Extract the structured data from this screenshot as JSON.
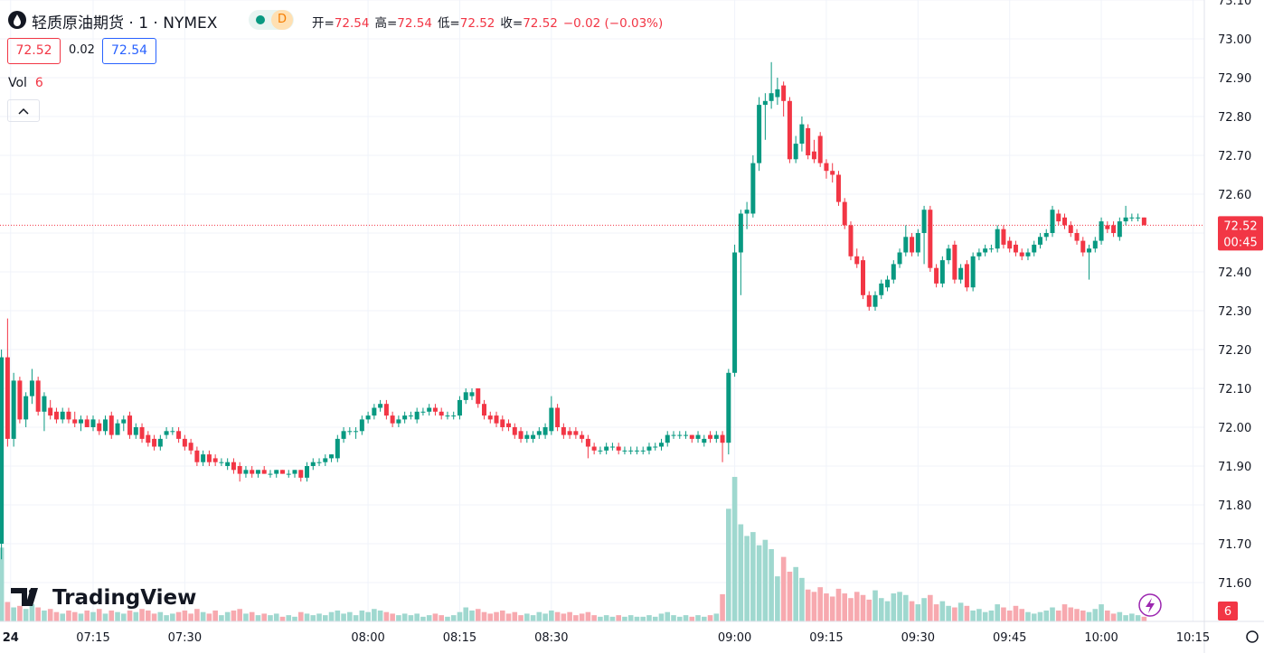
{
  "chart_data": {
    "type": "candlestick",
    "title": "轻质原油期货 · 1 · NYMEX",
    "interval_badge": "D",
    "ohlc_legend": [
      {
        "label": "开=",
        "value": "72.54"
      },
      {
        "label": "高=",
        "value": "72.54"
      },
      {
        "label": "低=",
        "value": "72.52"
      },
      {
        "label": "收=",
        "value": "72.52"
      }
    ],
    "change": "−0.02 (−0.03%)",
    "bid": "72.52",
    "spread": "0.02",
    "ask": "72.54",
    "volume_label": "Vol",
    "watermark": "TradingView",
    "up_color": "#089981",
    "down_color": "#f23645",
    "volume_up_color": "#9fd8cf",
    "volume_down_color": "#f7a9af",
    "grid": true,
    "xlim": [
      -0.24,
      196.86
    ],
    "xticks": [
      {
        "value": 1.5,
        "label": "24"
      },
      {
        "value": 15,
        "label": "07:15"
      },
      {
        "value": 30,
        "label": "07:30"
      },
      {
        "value": 60,
        "label": "08:00"
      },
      {
        "value": 75,
        "label": "08:15"
      },
      {
        "value": 90,
        "label": "08:30"
      },
      {
        "value": 120,
        "label": "09:00"
      },
      {
        "value": 135,
        "label": "09:15"
      },
      {
        "value": 150,
        "label": "09:30"
      },
      {
        "value": 165,
        "label": "09:45"
      },
      {
        "value": 180,
        "label": "10:00"
      },
      {
        "value": 195,
        "label": "10:15"
      }
    ],
    "ylim": [
      71.5,
      73.1
    ],
    "yticks": [
      {
        "value": 71.6,
        "label": "71.60"
      },
      {
        "value": 71.7,
        "label": "71.70"
      },
      {
        "value": 71.8,
        "label": "71.80"
      },
      {
        "value": 71.9,
        "label": "71.90"
      },
      {
        "value": 72.0,
        "label": "72.00"
      },
      {
        "value": 72.1,
        "label": "72.10"
      },
      {
        "value": 72.2,
        "label": "72.20"
      },
      {
        "value": 72.3,
        "label": "72.30"
      },
      {
        "value": 72.4,
        "label": "72.40"
      },
      {
        "value": 72.5,
        "label": "72.50"
      },
      {
        "value": 72.6,
        "label": "72.60"
      },
      {
        "value": 72.7,
        "label": "72.70"
      },
      {
        "value": 72.8,
        "label": "72.80"
      },
      {
        "value": 72.9,
        "label": "72.90"
      },
      {
        "value": 73.0,
        "label": "73.00"
      },
      {
        "value": 73.1,
        "label": "73.10"
      }
    ],
    "last_price": {
      "value": 72.52,
      "label": "72.52"
    },
    "countdown": "00:45",
    "volume_ylim": [
      0,
      800
    ],
    "candles": [
      [
        71.7,
        72.2,
        71.66,
        72.18
      ],
      [
        72.18,
        72.28,
        71.95,
        71.97
      ],
      [
        71.97,
        72.14,
        71.95,
        72.12
      ],
      [
        72.12,
        72.13,
        72.01,
        72.02
      ],
      [
        72.02,
        72.09,
        72.0,
        72.08
      ],
      [
        72.08,
        72.15,
        72.06,
        72.12
      ],
      [
        72.12,
        72.13,
        72.03,
        72.04
      ],
      [
        72.04,
        72.09,
        71.99,
        72.08
      ],
      [
        72.05,
        72.07,
        72.02,
        72.03
      ],
      [
        72.04,
        72.05,
        72.01,
        72.02
      ],
      [
        72.02,
        72.05,
        72.01,
        72.04
      ],
      [
        72.04,
        72.05,
        72.01,
        72.02
      ],
      [
        72.02,
        72.04,
        72.0,
        72.01
      ],
      [
        72.01,
        72.03,
        71.99,
        72.02
      ],
      [
        72.02,
        72.03,
        72.0,
        72.0
      ],
      [
        72.0,
        72.03,
        71.99,
        72.02
      ],
      [
        72.01,
        72.02,
        71.98,
        71.99
      ],
      [
        71.99,
        72.03,
        71.98,
        72.02
      ],
      [
        72.03,
        72.04,
        71.97,
        71.98
      ],
      [
        71.98,
        72.02,
        71.98,
        72.01
      ],
      [
        72.01,
        72.03,
        71.99,
        72.02
      ],
      [
        72.03,
        72.04,
        71.97,
        71.98
      ],
      [
        71.98,
        72.01,
        71.97,
        72.0
      ],
      [
        72.0,
        72.01,
        71.96,
        71.97
      ],
      [
        71.98,
        71.99,
        71.95,
        71.96
      ],
      [
        71.97,
        71.98,
        71.94,
        71.95
      ],
      [
        71.95,
        71.98,
        71.94,
        71.97
      ],
      [
        71.98,
        72.0,
        71.97,
        71.99
      ],
      [
        71.99,
        72.0,
        71.98,
        71.99
      ],
      [
        71.99,
        72.0,
        71.96,
        71.97
      ],
      [
        71.97,
        71.98,
        71.94,
        71.95
      ],
      [
        71.96,
        71.97,
        71.93,
        71.94
      ],
      [
        71.94,
        71.95,
        71.9,
        71.91
      ],
      [
        71.91,
        71.94,
        71.9,
        71.93
      ],
      [
        71.93,
        71.94,
        71.9,
        71.91
      ],
      [
        71.92,
        71.93,
        71.9,
        71.91
      ],
      [
        71.91,
        71.92,
        71.9,
        71.91
      ],
      [
        71.9,
        71.92,
        71.89,
        71.91
      ],
      [
        71.91,
        71.92,
        71.88,
        71.89
      ],
      [
        71.9,
        71.91,
        71.86,
        71.88
      ],
      [
        71.88,
        71.9,
        71.87,
        71.89
      ],
      [
        71.89,
        71.9,
        71.87,
        71.88
      ],
      [
        71.88,
        71.89,
        71.87,
        71.89
      ],
      [
        71.89,
        71.9,
        71.88,
        71.88
      ],
      [
        71.88,
        71.89,
        71.87,
        71.88
      ],
      [
        71.88,
        71.89,
        71.87,
        71.89
      ],
      [
        71.89,
        71.89,
        71.88,
        71.88
      ],
      [
        71.88,
        71.89,
        71.87,
        71.88
      ],
      [
        71.88,
        71.89,
        71.87,
        71.89
      ],
      [
        71.89,
        71.89,
        71.86,
        71.87
      ],
      [
        71.87,
        71.91,
        71.86,
        71.9
      ],
      [
        71.9,
        71.92,
        71.89,
        71.91
      ],
      [
        71.91,
        71.92,
        71.9,
        71.91
      ],
      [
        71.91,
        71.93,
        71.9,
        71.92
      ],
      [
        71.92,
        71.93,
        71.91,
        71.93
      ],
      [
        71.92,
        71.98,
        71.91,
        71.97
      ],
      [
        71.97,
        72.0,
        71.96,
        71.99
      ],
      [
        71.99,
        72.0,
        71.98,
        71.99
      ],
      [
        71.99,
        72.0,
        71.97,
        71.99
      ],
      [
        71.99,
        72.03,
        71.98,
        72.02
      ],
      [
        72.02,
        72.04,
        72.01,
        72.03
      ],
      [
        72.03,
        72.06,
        72.02,
        72.05
      ],
      [
        72.05,
        72.07,
        72.04,
        72.06
      ],
      [
        72.06,
        72.07,
        72.02,
        72.03
      ],
      [
        72.03,
        72.04,
        72.0,
        72.01
      ],
      [
        72.01,
        72.03,
        72.0,
        72.02
      ],
      [
        72.02,
        72.04,
        72.01,
        72.03
      ],
      [
        72.03,
        72.04,
        72.02,
        72.03
      ],
      [
        72.02,
        72.05,
        72.01,
        72.04
      ],
      [
        72.04,
        72.05,
        72.03,
        72.04
      ],
      [
        72.04,
        72.06,
        72.03,
        72.05
      ],
      [
        72.05,
        72.06,
        72.03,
        72.04
      ],
      [
        72.04,
        72.05,
        72.02,
        72.03
      ],
      [
        72.03,
        72.04,
        72.02,
        72.03
      ],
      [
        72.03,
        72.04,
        72.02,
        72.03
      ],
      [
        72.03,
        72.08,
        72.02,
        72.07
      ],
      [
        72.07,
        72.1,
        72.06,
        72.09
      ],
      [
        72.08,
        72.1,
        72.07,
        72.09
      ],
      [
        72.1,
        72.1,
        72.05,
        72.06
      ],
      [
        72.06,
        72.07,
        72.02,
        72.03
      ],
      [
        72.03,
        72.04,
        72.01,
        72.02
      ],
      [
        72.03,
        72.04,
        72.0,
        72.01
      ],
      [
        72.02,
        72.03,
        71.99,
        72.0
      ],
      [
        72.01,
        72.02,
        71.99,
        72.0
      ],
      [
        72.0,
        72.01,
        71.97,
        71.98
      ],
      [
        71.99,
        72.0,
        71.96,
        71.97
      ],
      [
        71.97,
        71.99,
        71.96,
        71.98
      ],
      [
        71.97,
        71.99,
        71.96,
        71.98
      ],
      [
        71.98,
        72.0,
        71.97,
        71.99
      ],
      [
        71.98,
        72.01,
        71.97,
        72.0
      ],
      [
        71.99,
        72.08,
        71.98,
        72.05
      ],
      [
        72.05,
        72.06,
        71.99,
        72.0
      ],
      [
        72.0,
        72.01,
        71.97,
        71.98
      ],
      [
        71.99,
        72.0,
        71.97,
        71.98
      ],
      [
        71.99,
        72.0,
        71.97,
        71.98
      ],
      [
        71.98,
        71.99,
        71.96,
        71.97
      ],
      [
        71.97,
        71.98,
        71.92,
        71.95
      ],
      [
        71.95,
        71.96,
        71.93,
        71.94
      ],
      [
        71.94,
        71.95,
        71.93,
        71.94
      ],
      [
        71.94,
        71.96,
        71.93,
        71.95
      ],
      [
        71.95,
        71.96,
        71.94,
        71.95
      ],
      [
        71.95,
        71.96,
        71.93,
        71.94
      ],
      [
        71.94,
        71.95,
        71.93,
        71.94
      ],
      [
        71.94,
        71.95,
        71.93,
        71.94
      ],
      [
        71.94,
        71.95,
        71.93,
        71.94
      ],
      [
        71.94,
        71.95,
        71.93,
        71.94
      ],
      [
        71.94,
        71.96,
        71.93,
        71.95
      ],
      [
        71.95,
        71.96,
        71.94,
        71.95
      ],
      [
        71.95,
        71.97,
        71.94,
        71.96
      ],
      [
        71.96,
        71.99,
        71.95,
        71.98
      ],
      [
        71.98,
        71.99,
        71.97,
        71.98
      ],
      [
        71.98,
        71.99,
        71.97,
        71.98
      ],
      [
        71.98,
        71.99,
        71.97,
        71.98
      ],
      [
        71.98,
        71.98,
        71.96,
        71.97
      ],
      [
        71.97,
        71.99,
        71.96,
        71.98
      ],
      [
        71.96,
        71.98,
        71.95,
        71.97
      ],
      [
        71.98,
        71.99,
        71.96,
        71.97
      ],
      [
        71.97,
        71.99,
        71.96,
        71.98
      ],
      [
        71.98,
        71.99,
        71.91,
        71.96
      ],
      [
        71.96,
        72.15,
        71.93,
        72.14
      ],
      [
        72.14,
        72.47,
        72.13,
        72.45
      ],
      [
        72.45,
        72.56,
        72.34,
        72.55
      ],
      [
        72.55,
        72.58,
        72.51,
        72.56
      ],
      [
        72.55,
        72.7,
        72.54,
        72.68
      ],
      [
        72.68,
        72.85,
        72.66,
        72.83
      ],
      [
        72.83,
        72.86,
        72.74,
        72.84
      ],
      [
        72.84,
        72.94,
        72.82,
        72.86
      ],
      [
        72.85,
        72.9,
        72.83,
        72.87
      ],
      [
        72.88,
        72.89,
        72.8,
        72.84
      ],
      [
        72.84,
        72.85,
        72.68,
        72.69
      ],
      [
        72.69,
        72.75,
        72.68,
        72.73
      ],
      [
        72.73,
        72.8,
        72.71,
        72.78
      ],
      [
        72.77,
        72.78,
        72.69,
        72.7
      ],
      [
        72.71,
        72.74,
        72.68,
        72.69
      ],
      [
        72.75,
        72.76,
        72.67,
        72.68
      ],
      [
        72.68,
        72.69,
        72.64,
        72.66
      ],
      [
        72.66,
        72.68,
        72.63,
        72.65
      ],
      [
        72.65,
        72.66,
        72.57,
        72.58
      ],
      [
        72.58,
        72.59,
        72.51,
        72.52
      ],
      [
        72.52,
        72.53,
        72.43,
        72.44
      ],
      [
        72.44,
        72.46,
        72.41,
        72.42
      ],
      [
        72.43,
        72.44,
        72.33,
        72.34
      ],
      [
        72.34,
        72.35,
        72.3,
        72.31
      ],
      [
        72.31,
        72.35,
        72.3,
        72.34
      ],
      [
        72.34,
        72.38,
        72.33,
        72.37
      ],
      [
        72.36,
        72.39,
        72.35,
        72.38
      ],
      [
        72.38,
        72.43,
        72.37,
        72.42
      ],
      [
        72.42,
        72.46,
        72.41,
        72.45
      ],
      [
        72.45,
        72.52,
        72.44,
        72.49
      ],
      [
        72.49,
        72.5,
        72.44,
        72.45
      ],
      [
        72.45,
        72.51,
        72.44,
        72.5
      ],
      [
        72.5,
        72.57,
        72.42,
        72.56
      ],
      [
        72.56,
        72.57,
        72.4,
        72.41
      ],
      [
        72.41,
        72.42,
        72.36,
        72.37
      ],
      [
        72.37,
        72.44,
        72.36,
        72.43
      ],
      [
        72.43,
        72.47,
        72.42,
        72.46
      ],
      [
        72.47,
        72.48,
        72.37,
        72.38
      ],
      [
        72.38,
        72.42,
        72.37,
        72.41
      ],
      [
        72.42,
        72.43,
        72.35,
        72.36
      ],
      [
        72.36,
        72.45,
        72.35,
        72.44
      ],
      [
        72.44,
        72.46,
        72.43,
        72.45
      ],
      [
        72.45,
        72.47,
        72.44,
        72.46
      ],
      [
        72.46,
        72.47,
        72.45,
        72.46
      ],
      [
        72.46,
        72.52,
        72.45,
        72.51
      ],
      [
        72.51,
        72.52,
        72.46,
        72.47
      ],
      [
        72.48,
        72.49,
        72.45,
        72.46
      ],
      [
        72.47,
        72.48,
        72.44,
        72.45
      ],
      [
        72.45,
        72.46,
        72.43,
        72.44
      ],
      [
        72.44,
        72.46,
        72.43,
        72.45
      ],
      [
        72.45,
        72.48,
        72.44,
        72.47
      ],
      [
        72.47,
        72.5,
        72.46,
        72.49
      ],
      [
        72.49,
        72.51,
        72.48,
        72.5
      ],
      [
        72.5,
        72.57,
        72.49,
        72.56
      ],
      [
        72.55,
        72.56,
        72.52,
        72.53
      ],
      [
        72.54,
        72.55,
        72.51,
        72.52
      ],
      [
        72.52,
        72.53,
        72.49,
        72.5
      ],
      [
        72.5,
        72.51,
        72.47,
        72.48
      ],
      [
        72.48,
        72.49,
        72.44,
        72.45
      ],
      [
        72.45,
        72.47,
        72.38,
        72.46
      ],
      [
        72.46,
        72.49,
        72.45,
        72.48
      ],
      [
        72.48,
        72.54,
        72.47,
        72.53
      ],
      [
        72.52,
        72.53,
        72.5,
        72.51
      ],
      [
        72.52,
        72.53,
        72.49,
        72.5
      ],
      [
        72.49,
        72.54,
        72.48,
        72.53
      ],
      [
        72.53,
        72.57,
        72.52,
        72.54
      ],
      [
        72.54,
        72.55,
        72.53,
        72.54
      ],
      [
        72.54,
        72.55,
        72.53,
        72.54
      ],
      [
        72.54,
        72.54,
        72.52,
        72.52
      ]
    ],
    "volumes": [
      95,
      25,
      18,
      20,
      16,
      22,
      18,
      14,
      16,
      12,
      10,
      14,
      12,
      10,
      14,
      12,
      16,
      10,
      14,
      12,
      10,
      14,
      12,
      16,
      14,
      10,
      12,
      8,
      10,
      12,
      14,
      10,
      16,
      12,
      10,
      14,
      8,
      12,
      14,
      16,
      10,
      12,
      8,
      10,
      8,
      10,
      6,
      8,
      6,
      12,
      10,
      8,
      10,
      8,
      12,
      14,
      10,
      12,
      8,
      14,
      12,
      16,
      14,
      12,
      10,
      8,
      10,
      8,
      10,
      6,
      8,
      10,
      8,
      6,
      8,
      12,
      18,
      14,
      16,
      12,
      10,
      12,
      14,
      10,
      12,
      8,
      10,
      8,
      12,
      10,
      14,
      12,
      10,
      12,
      8,
      10,
      12,
      8,
      6,
      8,
      6,
      8,
      6,
      8,
      6,
      6,
      8,
      6,
      10,
      12,
      8,
      6,
      8,
      6,
      8,
      6,
      8,
      10,
      35,
      145,
      186,
      125,
      110,
      115,
      98,
      105,
      93,
      58,
      83,
      64,
      70,
      56,
      41,
      38,
      44,
      36,
      32,
      42,
      36,
      30,
      38,
      34,
      28,
      40,
      30,
      26,
      36,
      38,
      34,
      26,
      22,
      30,
      34,
      22,
      26,
      20,
      18,
      24,
      20,
      14,
      16,
      12,
      14,
      22,
      18,
      14,
      20,
      16,
      12,
      10,
      12,
      14,
      18,
      14,
      22,
      18,
      16,
      14,
      12,
      16,
      22,
      14,
      10,
      12,
      8,
      10,
      8,
      6
    ]
  }
}
